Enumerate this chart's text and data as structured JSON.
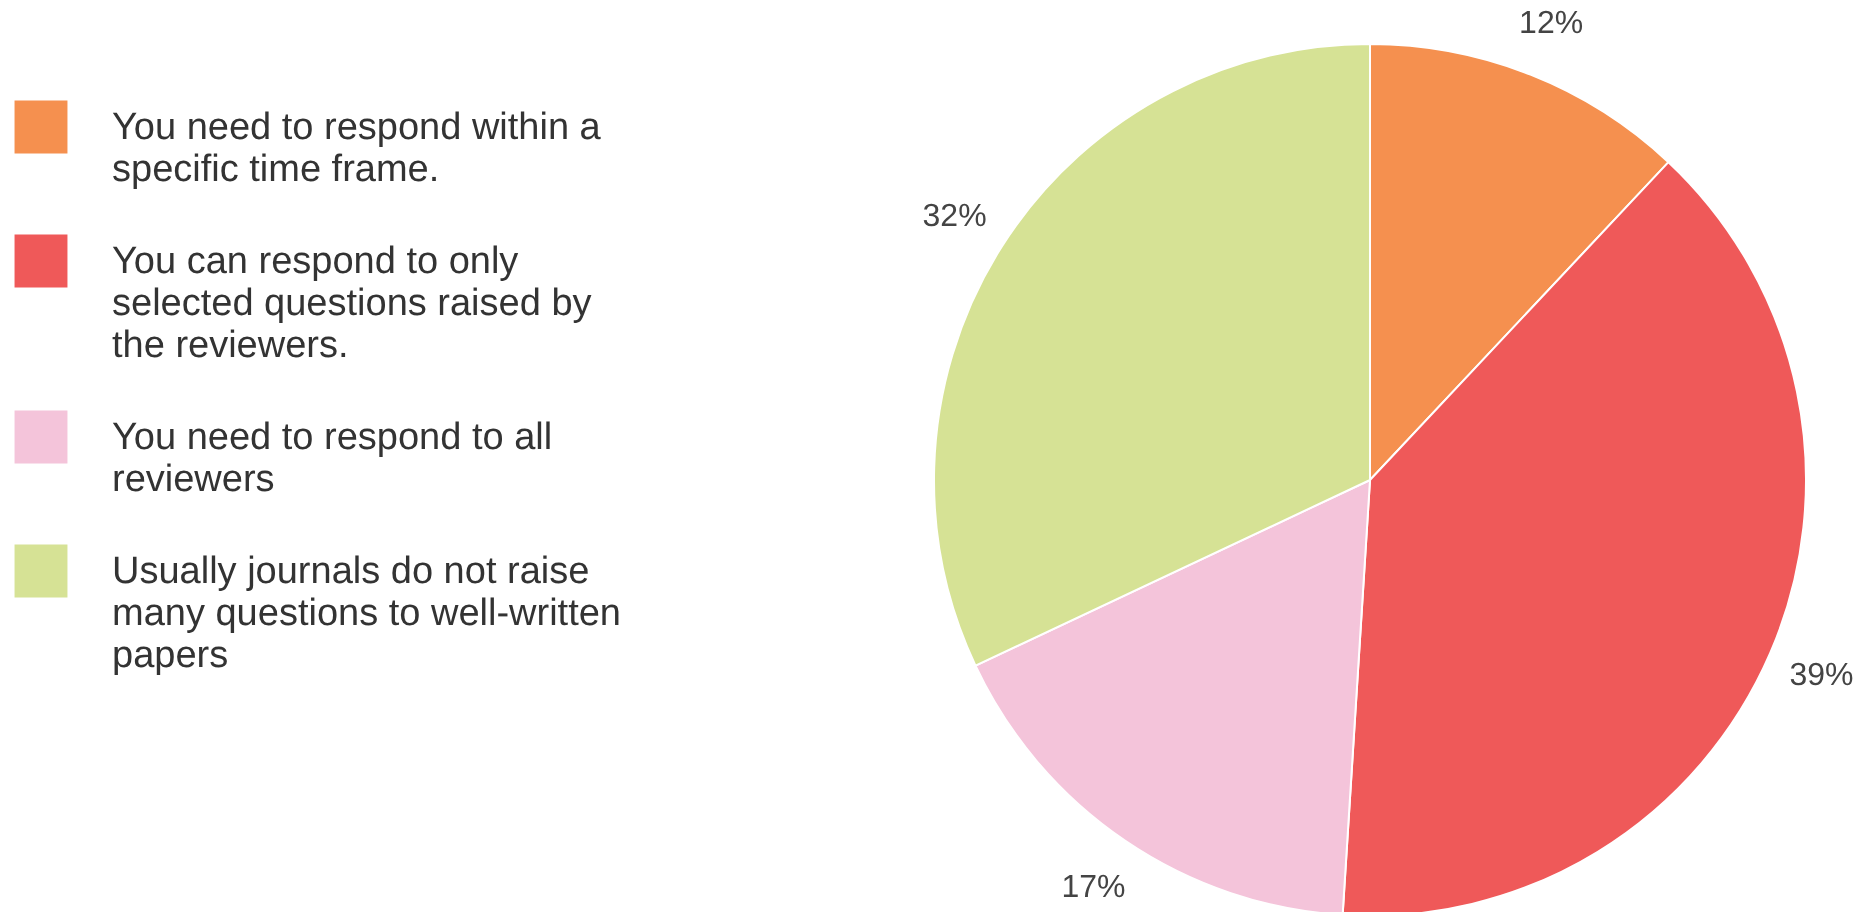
{
  "chart_data": {
    "type": "pie",
    "categories": [
      "You need to respond within a specific time frame.",
      "You can respond to only selected questions raised by the reviewers.",
      "You need to respond to all reviewers",
      "Usually journals do not raise many questions to well-written papers"
    ],
    "values": [
      12,
      39,
      17,
      32
    ],
    "colors": [
      "#f5904f",
      "#ef5959",
      "#f4c4da",
      "#d6e295"
    ],
    "value_labels": [
      "12%",
      "39%",
      "17%",
      "32%"
    ],
    "legend": "left"
  }
}
